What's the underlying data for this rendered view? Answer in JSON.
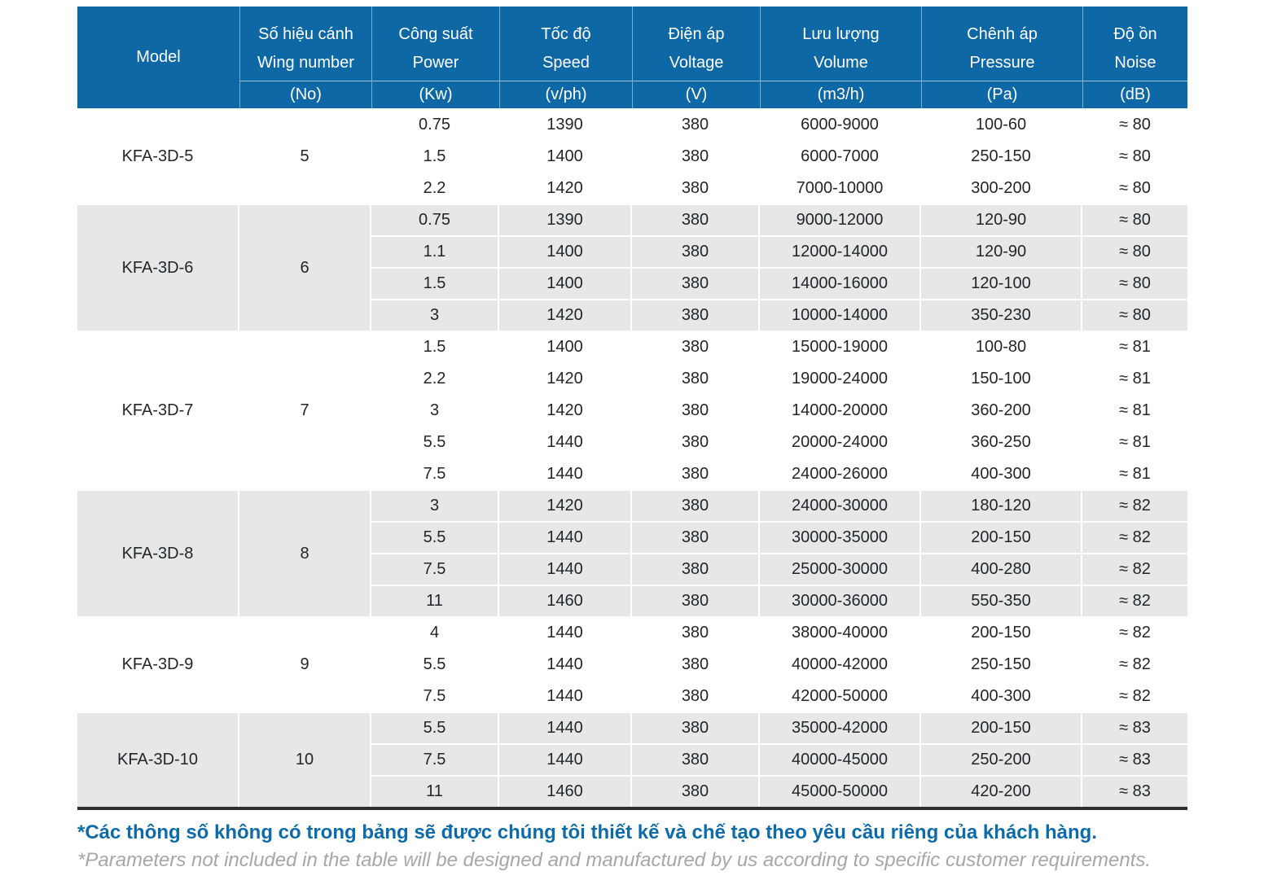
{
  "table": {
    "columns": [
      {
        "vn": "",
        "en": "Model",
        "unit": ""
      },
      {
        "vn": "Số hiệu cánh",
        "en": "Wing number",
        "unit": "(No)"
      },
      {
        "vn": "Công suất",
        "en": "Power",
        "unit": "(Kw)"
      },
      {
        "vn": "Tốc độ",
        "en": "Speed",
        "unit": "(v/ph)"
      },
      {
        "vn": "Điện áp",
        "en": "Voltage",
        "unit": "(V)"
      },
      {
        "vn": "Lưu lượng",
        "en": "Volume",
        "unit": "(m3/h)"
      },
      {
        "vn": "Chênh áp",
        "en": "Pressure",
        "unit": "(Pa)"
      },
      {
        "vn": "Độ ồn",
        "en": "Noise",
        "unit": "(dB)"
      }
    ],
    "groups": [
      {
        "model": "KFA-3D-5",
        "wing": "5",
        "rows": [
          {
            "power": "0.75",
            "speed": "1390",
            "voltage": "380",
            "volume": "6000-9000",
            "pressure": "100-60",
            "noise": "≈ 80"
          },
          {
            "power": "1.5",
            "speed": "1400",
            "voltage": "380",
            "volume": "6000-7000",
            "pressure": "250-150",
            "noise": "≈ 80"
          },
          {
            "power": "2.2",
            "speed": "1420",
            "voltage": "380",
            "volume": "7000-10000",
            "pressure": "300-200",
            "noise": "≈ 80"
          }
        ]
      },
      {
        "model": "KFA-3D-6",
        "wing": "6",
        "rows": [
          {
            "power": "0.75",
            "speed": "1390",
            "voltage": "380",
            "volume": "9000-12000",
            "pressure": "120-90",
            "noise": "≈ 80"
          },
          {
            "power": "1.1",
            "speed": "1400",
            "voltage": "380",
            "volume": "12000-14000",
            "pressure": "120-90",
            "noise": "≈ 80"
          },
          {
            "power": "1.5",
            "speed": "1400",
            "voltage": "380",
            "volume": "14000-16000",
            "pressure": "120-100",
            "noise": "≈ 80"
          },
          {
            "power": "3",
            "speed": "1420",
            "voltage": "380",
            "volume": "10000-14000",
            "pressure": "350-230",
            "noise": "≈ 80"
          }
        ]
      },
      {
        "model": "KFA-3D-7",
        "wing": "7",
        "rows": [
          {
            "power": "1.5",
            "speed": "1400",
            "voltage": "380",
            "volume": "15000-19000",
            "pressure": "100-80",
            "noise": "≈ 81"
          },
          {
            "power": "2.2",
            "speed": "1420",
            "voltage": "380",
            "volume": "19000-24000",
            "pressure": "150-100",
            "noise": "≈ 81"
          },
          {
            "power": "3",
            "speed": "1420",
            "voltage": "380",
            "volume": "14000-20000",
            "pressure": "360-200",
            "noise": "≈ 81"
          },
          {
            "power": "5.5",
            "speed": "1440",
            "voltage": "380",
            "volume": "20000-24000",
            "pressure": "360-250",
            "noise": "≈ 81"
          },
          {
            "power": "7.5",
            "speed": "1440",
            "voltage": "380",
            "volume": "24000-26000",
            "pressure": "400-300",
            "noise": "≈ 81"
          }
        ]
      },
      {
        "model": "KFA-3D-8",
        "wing": "8",
        "rows": [
          {
            "power": "3",
            "speed": "1420",
            "voltage": "380",
            "volume": "24000-30000",
            "pressure": "180-120",
            "noise": "≈ 82"
          },
          {
            "power": "5.5",
            "speed": "1440",
            "voltage": "380",
            "volume": "30000-35000",
            "pressure": "200-150",
            "noise": "≈ 82"
          },
          {
            "power": "7.5",
            "speed": "1440",
            "voltage": "380",
            "volume": "25000-30000",
            "pressure": "400-280",
            "noise": "≈ 82"
          },
          {
            "power": "11",
            "speed": "1460",
            "voltage": "380",
            "volume": "30000-36000",
            "pressure": "550-350",
            "noise": "≈ 82"
          }
        ]
      },
      {
        "model": "KFA-3D-9",
        "wing": "9",
        "rows": [
          {
            "power": "4",
            "speed": "1440",
            "voltage": "380",
            "volume": "38000-40000",
            "pressure": "200-150",
            "noise": "≈ 82"
          },
          {
            "power": "5.5",
            "speed": "1440",
            "voltage": "380",
            "volume": "40000-42000",
            "pressure": "250-150",
            "noise": "≈ 82"
          },
          {
            "power": "7.5",
            "speed": "1440",
            "voltage": "380",
            "volume": "42000-50000",
            "pressure": "400-300",
            "noise": "≈ 82"
          }
        ]
      },
      {
        "model": "KFA-3D-10",
        "wing": "10",
        "rows": [
          {
            "power": "5.5",
            "speed": "1440",
            "voltage": "380",
            "volume": "35000-42000",
            "pressure": "200-150",
            "noise": "≈ 83"
          },
          {
            "power": "7.5",
            "speed": "1440",
            "voltage": "380",
            "volume": "40000-45000",
            "pressure": "250-200",
            "noise": "≈ 83"
          },
          {
            "power": "11",
            "speed": "1460",
            "voltage": "380",
            "volume": "45000-50000",
            "pressure": "420-200",
            "noise": "≈ 83"
          }
        ]
      }
    ]
  },
  "footnotes": {
    "vi": "*Các thông số không có trong bảng sẽ được chúng tôi thiết kế và chế tạo theo yêu cầu riêng của khách hàng.",
    "en": "*Parameters not included in the table will be designed and manufactured by us according to specific customer requirements."
  },
  "colors": {
    "header_bg": "#0e68a5",
    "band_bg": "#e5e7e8",
    "footnote_vi": "#0e6ba9",
    "footnote_en": "#a7a7a9",
    "body_text": "#232629",
    "bottom_rule": "#2e2e2e"
  }
}
